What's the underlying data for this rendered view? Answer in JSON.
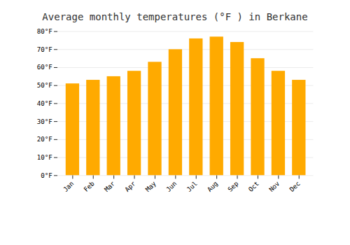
{
  "chart_data": {
    "type": "bar",
    "title": "Average monthly temperatures (°F ) in Berkane",
    "categories": [
      "Jan",
      "Feb",
      "Mar",
      "Apr",
      "May",
      "Jun",
      "Jul",
      "Aug",
      "Sep",
      "Oct",
      "Nov",
      "Dec"
    ],
    "values": [
      51,
      53,
      55,
      58,
      63,
      70,
      76,
      77,
      74,
      65,
      58,
      53
    ],
    "color": "#FFAA00",
    "ylim": [
      0,
      80
    ],
    "yticks": [
      {
        "value": 0,
        "label": "0°F"
      },
      {
        "value": 10,
        "label": "10°F"
      },
      {
        "value": 20,
        "label": "20°F"
      },
      {
        "value": 30,
        "label": "30°F"
      },
      {
        "value": 40,
        "label": "40°F"
      },
      {
        "value": 50,
        "label": "50°F"
      },
      {
        "value": 60,
        "label": "60°F"
      },
      {
        "value": 70,
        "label": "70°F"
      },
      {
        "value": 80,
        "label": "80°F"
      }
    ],
    "grid": true
  }
}
